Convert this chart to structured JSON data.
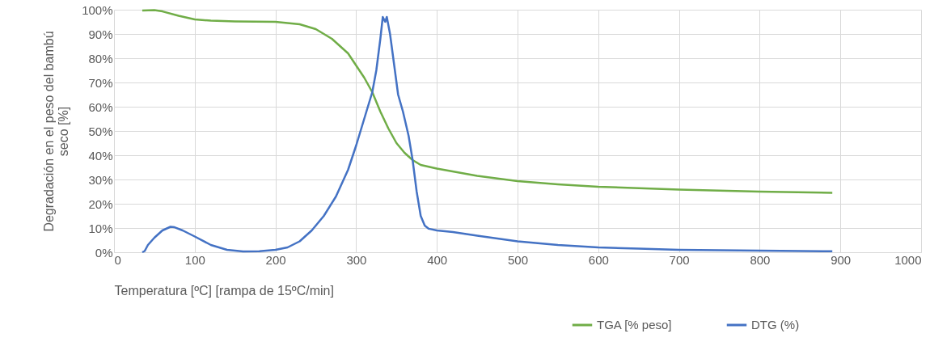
{
  "chart_data": {
    "type": "line",
    "xlabel": "Temperatura [ºC] [rampa de 15ºC/min]",
    "ylabel": "Degradación en el peso del bambú seco [%]",
    "xlim": [
      0,
      1000
    ],
    "xticks": [
      0,
      100,
      200,
      300,
      400,
      500,
      600,
      700,
      800,
      900,
      1000
    ],
    "ylim": [
      0,
      100
    ],
    "yticks": [
      {
        "value": 0,
        "label": "0%"
      },
      {
        "value": 10,
        "label": "10%"
      },
      {
        "value": 20,
        "label": "20%"
      },
      {
        "value": 30,
        "label": "30%"
      },
      {
        "value": 40,
        "label": "40%"
      },
      {
        "value": 50,
        "label": "50%"
      },
      {
        "value": 60,
        "label": "60%"
      },
      {
        "value": 70,
        "label": "70%"
      },
      {
        "value": 80,
        "label": "80%"
      },
      {
        "value": 90,
        "label": "90%"
      },
      {
        "value": 100,
        "label": "100%"
      }
    ],
    "grid": true,
    "legend": "bottom",
    "marker": "none",
    "line_style": "solid",
    "series": [
      {
        "name": "TGA [% peso]",
        "color": "#70ad47",
        "x": [
          35,
          50,
          60,
          80,
          100,
          120,
          150,
          200,
          230,
          250,
          270,
          290,
          310,
          320,
          330,
          340,
          350,
          360,
          370,
          380,
          400,
          450,
          500,
          550,
          600,
          700,
          800,
          890
        ],
        "values": [
          99.7,
          99.8,
          99.3,
          97.5,
          96,
          95.5,
          95.2,
          95,
          94,
          92,
          88,
          82,
          72,
          66,
          58,
          51,
          45,
          41,
          38,
          36,
          34.5,
          31.5,
          29.3,
          28,
          27,
          25.8,
          25,
          24.5
        ]
      },
      {
        "name": "DTG (%)",
        "color": "#4472c4",
        "x": [
          35,
          38,
          42,
          50,
          60,
          70,
          75,
          85,
          100,
          120,
          140,
          160,
          180,
          200,
          215,
          230,
          245,
          260,
          275,
          290,
          300,
          310,
          320,
          325,
          330,
          333,
          336,
          338,
          342,
          348,
          352,
          358,
          365,
          370,
          375,
          380,
          385,
          390,
          400,
          420,
          450,
          500,
          550,
          600,
          650,
          700,
          800,
          890
        ],
        "values": [
          0,
          0.5,
          3,
          6,
          9,
          10.5,
          10.3,
          9,
          6.5,
          3,
          1,
          0.3,
          0.4,
          1,
          2,
          4.5,
          9,
          15,
          23,
          34,
          44,
          55,
          66,
          75,
          88,
          97,
          95,
          97,
          90,
          75,
          65,
          58,
          48,
          38,
          25,
          15,
          11,
          9.7,
          9,
          8.3,
          6.8,
          4.5,
          3,
          2,
          1.5,
          1,
          0.7,
          0.4
        ]
      }
    ]
  }
}
